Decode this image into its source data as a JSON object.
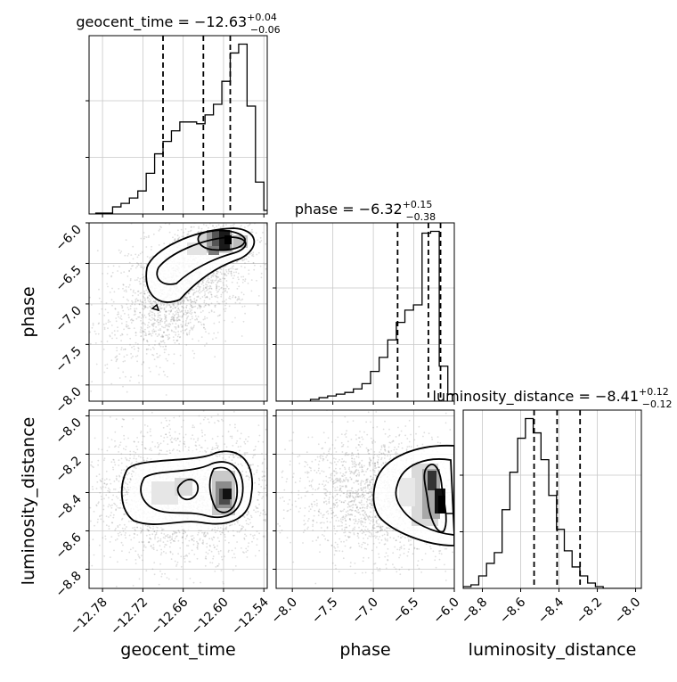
{
  "chart_data": {
    "type": "corner",
    "parameters": [
      {
        "key": "geocent_time",
        "label": "geocent_time",
        "range": [
          -12.8,
          -12.535
        ],
        "ticks": [
          "−12.78",
          "−12.72",
          "−12.66",
          "−12.60",
          "−12.54"
        ],
        "tick_values": [
          -12.78,
          -12.72,
          -12.66,
          -12.6,
          -12.54
        ]
      },
      {
        "key": "phase",
        "label": "phase",
        "range": [
          -8.2,
          -6.0
        ],
        "ticks": [
          "−8.0",
          "−7.5",
          "−7.0",
          "−6.5",
          "−6.0"
        ],
        "tick_values": [
          -8.0,
          -7.5,
          -7.0,
          -6.5,
          -6.0
        ]
      },
      {
        "key": "luminosity_distance",
        "label": "luminosity_distance",
        "range": [
          -8.9,
          -7.97
        ],
        "ticks": [
          "−8.8",
          "−8.6",
          "−8.4",
          "−8.2",
          "−8.0"
        ],
        "tick_values": [
          -8.8,
          -8.6,
          -8.4,
          -8.2,
          -8.0
        ]
      }
    ],
    "titles": [
      {
        "name": "geocent_time",
        "median": "−12.63",
        "plus": "+0.04",
        "minus": "−0.06"
      },
      {
        "name": "phase",
        "median": "−6.32",
        "plus": "+0.15",
        "minus": "−0.38"
      },
      {
        "name": "luminosity_distance",
        "median": "−8.41",
        "plus": "+0.12",
        "minus": "−0.12"
      }
    ],
    "quantiles": {
      "geocent_time": [
        -12.69,
        -12.63,
        -12.59
      ],
      "phase": [
        -6.7,
        -6.32,
        -6.17
      ],
      "luminosity_distance": [
        -8.53,
        -8.41,
        -8.29
      ]
    },
    "histograms": {
      "geocent_time": {
        "start": -12.79,
        "width": 0.0125,
        "counts": [
          0.5,
          0.5,
          4,
          6,
          9,
          13,
          23,
          34,
          41,
          47,
          52,
          52,
          51,
          56,
          62,
          75,
          91,
          96,
          61,
          18,
          2
        ]
      },
      "phase": {
        "start": -8.2,
        "width": 0.106,
        "counts": [
          0,
          0,
          0,
          0,
          1,
          2,
          3,
          4,
          5,
          7,
          10,
          17,
          25,
          35,
          45,
          52,
          55,
          96,
          97,
          20,
          4
        ]
      },
      "luminosity_distance": {
        "start": -8.9,
        "width": 0.0406,
        "counts": [
          1,
          2,
          7,
          14,
          20,
          44,
          65,
          84,
          95,
          87,
          72,
          52,
          33,
          21,
          12,
          7,
          3,
          1,
          0,
          0,
          0,
          0,
          0
        ]
      }
    },
    "grid": true
  }
}
